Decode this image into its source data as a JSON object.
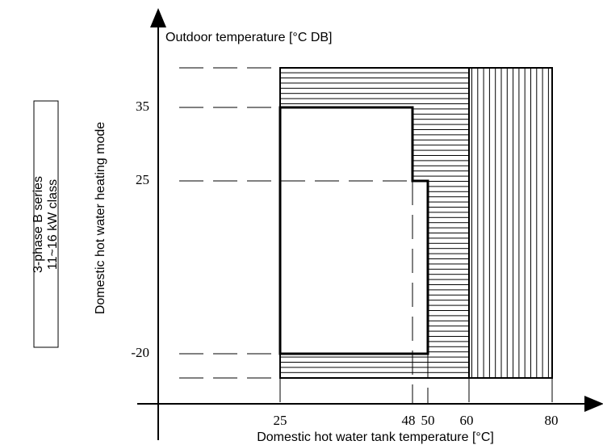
{
  "axes": {
    "y_label": "Outdoor temperature [°C DB]",
    "x_label": "Domestic hot water tank temperature [°C]",
    "y_ticks": [
      "35",
      "25",
      "-20"
    ],
    "x_ticks": [
      "25",
      "48",
      "50",
      "60",
      "80"
    ]
  },
  "side_label": "Domestic hot water heating mode",
  "box": {
    "lines": [
      "3-phase B series",
      "11~16 kW class"
    ]
  }
}
